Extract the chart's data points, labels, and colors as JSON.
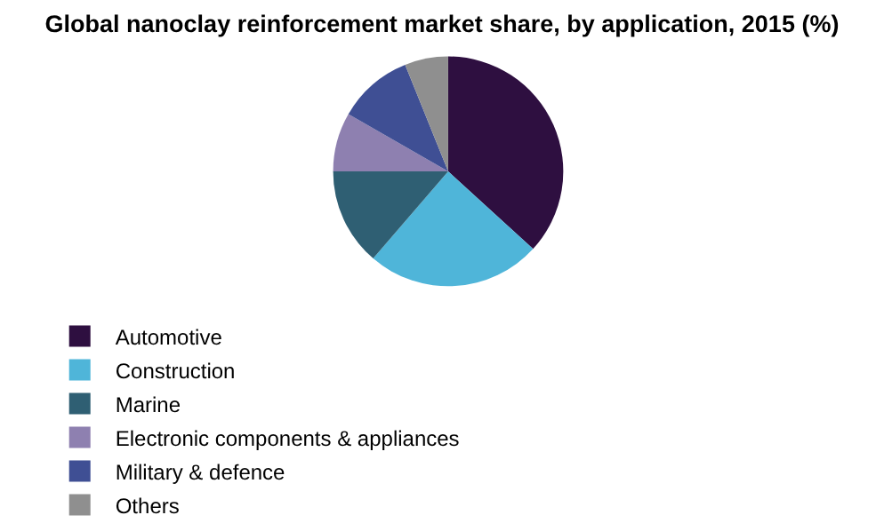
{
  "chart_data": {
    "type": "pie",
    "title": "Global nanoclay reinforcement market share, by application, 2015 (%)",
    "categories": [
      "Automotive",
      "Construction",
      "Marine",
      "Electronic components & appliances",
      "Military & defence",
      "Others"
    ],
    "values": [
      36.8,
      24.5,
      13.7,
      8.3,
      10.6,
      6.1
    ],
    "colors": [
      "#2e0f40",
      "#4fb5d9",
      "#2f5f73",
      "#8e80b0",
      "#3f4f94",
      "#8f8f8f"
    ],
    "legend": "bottom"
  }
}
